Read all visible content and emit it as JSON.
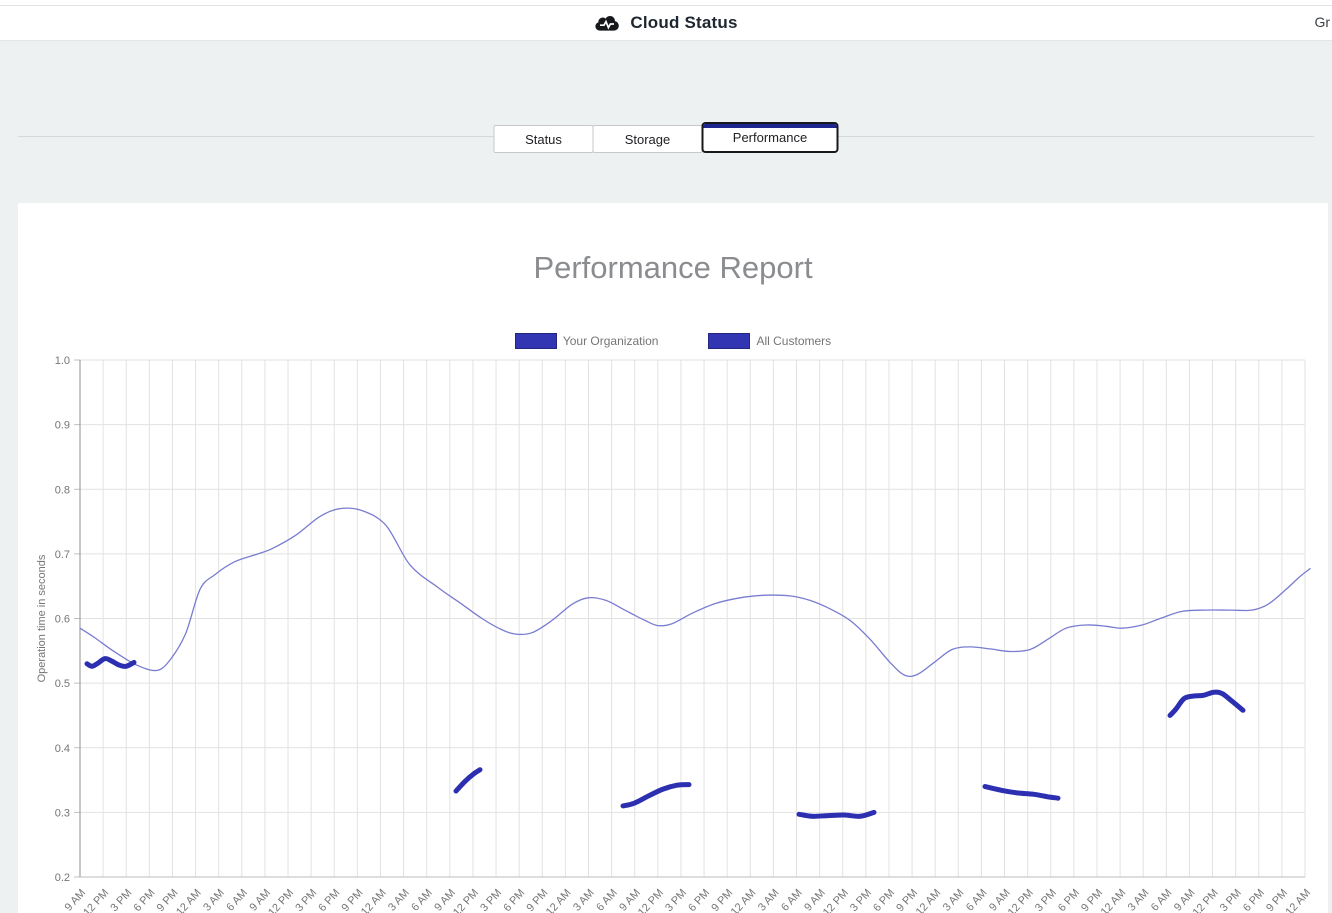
{
  "header": {
    "title": "Cloud Status",
    "right_text": "Gr"
  },
  "tabs": [
    {
      "label": "Status",
      "active": false
    },
    {
      "label": "Storage",
      "active": false
    },
    {
      "label": "Performance",
      "active": true
    }
  ],
  "colors": {
    "active_tab_accent": "#1f2590",
    "series_thick": "#2c2fb0",
    "series_thin": "#797cd1",
    "gridline": "#e2e2e2",
    "axis_line": "#8f8f8f",
    "axis_text": "#757575"
  },
  "chart_data": {
    "type": "line",
    "title": "Performance Report",
    "ylabel": "Operation time in seconds",
    "ylim": [
      0.2,
      1.0
    ],
    "y_ticks": [
      "1.0",
      "0.9",
      "0.8",
      "0.7",
      "0.6",
      "0.5",
      "0.4",
      "0.3",
      "0.2"
    ],
    "x_tick_labels": [
      "9 AM",
      "12 PM",
      "3 PM",
      "6 PM",
      "9 PM",
      "12 AM",
      "3 AM",
      "6 AM",
      "9 AM",
      "12 PM",
      "3 PM",
      "6 PM",
      "9 PM",
      "12 AM",
      "3 AM",
      "6 AM",
      "9 AM",
      "12 PM",
      "3 PM",
      "6 PM",
      "9 PM",
      "12 AM",
      "3 AM",
      "6 AM",
      "9 AM",
      "12 PM",
      "3 PM",
      "6 PM",
      "9 PM",
      "12 AM",
      "3 AM",
      "6 AM",
      "9 AM",
      "12 PM",
      "3 PM",
      "6 PM",
      "9 PM",
      "12 AM",
      "3 AM",
      "6 AM",
      "9 AM",
      "12 PM",
      "3 PM",
      "6 PM",
      "9 PM",
      "12 AM",
      "3 AM",
      "6 AM",
      "9 AM",
      "12 PM",
      "3 PM",
      "6 PM",
      "9 PM",
      "12 AM"
    ],
    "grid": true,
    "legend_position": "top-center",
    "legend": [
      {
        "label": "Your Organization",
        "color": "#3236b2"
      },
      {
        "label": "All Customers",
        "color": "#3236b2"
      }
    ],
    "series": [
      {
        "name": "All Customers",
        "style": "thin",
        "color": "#797cd1",
        "points": [
          [
            80,
            0.585
          ],
          [
            95,
            0.57
          ],
          [
            115,
            0.548
          ],
          [
            138,
            0.527
          ],
          [
            158,
            0.52
          ],
          [
            172,
            0.54
          ],
          [
            186,
            0.578
          ],
          [
            200,
            0.645
          ],
          [
            215,
            0.668
          ],
          [
            235,
            0.688
          ],
          [
            258,
            0.7
          ],
          [
            272,
            0.708
          ],
          [
            296,
            0.729
          ],
          [
            320,
            0.758
          ],
          [
            340,
            0.77
          ],
          [
            362,
            0.767
          ],
          [
            386,
            0.744
          ],
          [
            410,
            0.683
          ],
          [
            438,
            0.648
          ],
          [
            462,
            0.622
          ],
          [
            482,
            0.6
          ],
          [
            500,
            0.584
          ],
          [
            515,
            0.576
          ],
          [
            532,
            0.578
          ],
          [
            552,
            0.597
          ],
          [
            572,
            0.622
          ],
          [
            588,
            0.632
          ],
          [
            606,
            0.628
          ],
          [
            626,
            0.612
          ],
          [
            645,
            0.597
          ],
          [
            658,
            0.589
          ],
          [
            672,
            0.592
          ],
          [
            692,
            0.608
          ],
          [
            715,
            0.623
          ],
          [
            740,
            0.632
          ],
          [
            765,
            0.636
          ],
          [
            790,
            0.635
          ],
          [
            810,
            0.628
          ],
          [
            830,
            0.615
          ],
          [
            850,
            0.597
          ],
          [
            870,
            0.568
          ],
          [
            890,
            0.532
          ],
          [
            905,
            0.512
          ],
          [
            918,
            0.514
          ],
          [
            935,
            0.533
          ],
          [
            952,
            0.552
          ],
          [
            970,
            0.556
          ],
          [
            990,
            0.553
          ],
          [
            1010,
            0.549
          ],
          [
            1030,
            0.552
          ],
          [
            1048,
            0.568
          ],
          [
            1066,
            0.585
          ],
          [
            1086,
            0.59
          ],
          [
            1106,
            0.588
          ],
          [
            1122,
            0.585
          ],
          [
            1142,
            0.59
          ],
          [
            1162,
            0.601
          ],
          [
            1182,
            0.611
          ],
          [
            1205,
            0.613
          ],
          [
            1230,
            0.613
          ],
          [
            1252,
            0.613
          ],
          [
            1268,
            0.622
          ],
          [
            1286,
            0.645
          ],
          [
            1300,
            0.665
          ],
          [
            1310,
            0.677
          ]
        ]
      },
      {
        "name": "Your Organization",
        "style": "thick",
        "color": "#2c2fb0",
        "segments": [
          [
            [
              87,
              0.53
            ],
            [
              92,
              0.526
            ],
            [
              98,
              0.531
            ],
            [
              105,
              0.538
            ],
            [
              112,
              0.534
            ],
            [
              119,
              0.528
            ],
            [
              126,
              0.526
            ],
            [
              134,
              0.532
            ]
          ],
          [
            [
              456,
              0.333
            ],
            [
              465,
              0.348
            ],
            [
              474,
              0.36
            ],
            [
              480,
              0.366
            ]
          ],
          [
            [
              623,
              0.31
            ],
            [
              634,
              0.314
            ],
            [
              648,
              0.325
            ],
            [
              663,
              0.336
            ],
            [
              677,
              0.342
            ],
            [
              689,
              0.343
            ]
          ],
          [
            [
              799,
              0.297
            ],
            [
              812,
              0.294
            ],
            [
              828,
              0.295
            ],
            [
              844,
              0.296
            ],
            [
              860,
              0.294
            ],
            [
              874,
              0.3
            ]
          ],
          [
            [
              985,
              0.34
            ],
            [
              1002,
              0.334
            ],
            [
              1018,
              0.33
            ],
            [
              1034,
              0.328
            ],
            [
              1048,
              0.324
            ],
            [
              1058,
              0.322
            ]
          ],
          [
            [
              1170,
              0.45
            ],
            [
              1176,
              0.46
            ],
            [
              1184,
              0.476
            ],
            [
              1193,
              0.48
            ],
            [
              1203,
              0.481
            ],
            [
              1214,
              0.486
            ],
            [
              1222,
              0.484
            ],
            [
              1232,
              0.472
            ],
            [
              1243,
              0.458
            ]
          ]
        ]
      }
    ]
  }
}
